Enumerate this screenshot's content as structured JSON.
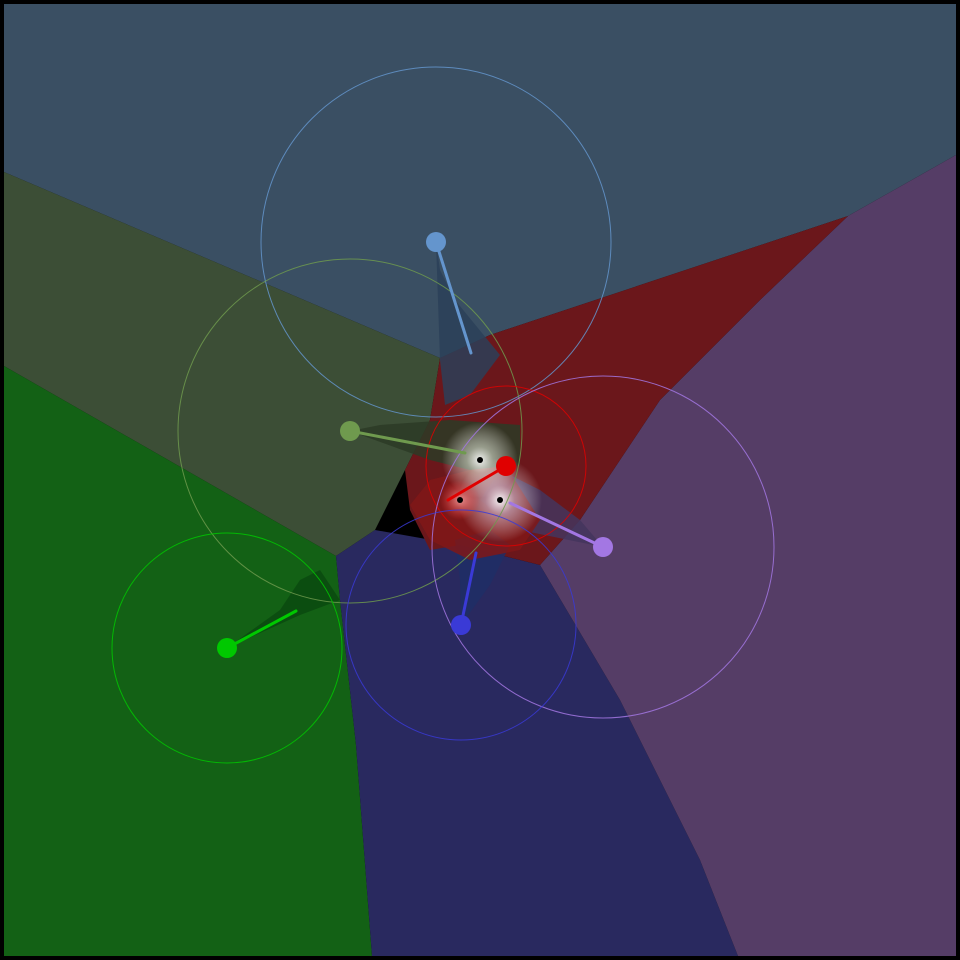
{
  "scene": {
    "background": "#000000",
    "agents": [
      {
        "name": "light-blue",
        "dot": "#6495cd",
        "region": "#3a4f63",
        "wedge": "#2b3f58"
      },
      {
        "name": "olive-green",
        "dot": "#6f9a4e",
        "region": "#3c4e36",
        "wedge": "#2c3b26"
      },
      {
        "name": "red",
        "dot": "#e00000",
        "region": "#6b171b",
        "wedge": "#801818"
      },
      {
        "name": "purple",
        "dot": "#a377e3",
        "region": "#553d66",
        "wedge": "#44355d"
      },
      {
        "name": "blue",
        "dot": "#3a3ad6",
        "region": "#29295f",
        "wedge": "#1f2e66"
      },
      {
        "name": "green",
        "dot": "#00c800",
        "region": "#136115",
        "wedge": "#0a4a0f"
      }
    ],
    "target_markers": 3
  }
}
